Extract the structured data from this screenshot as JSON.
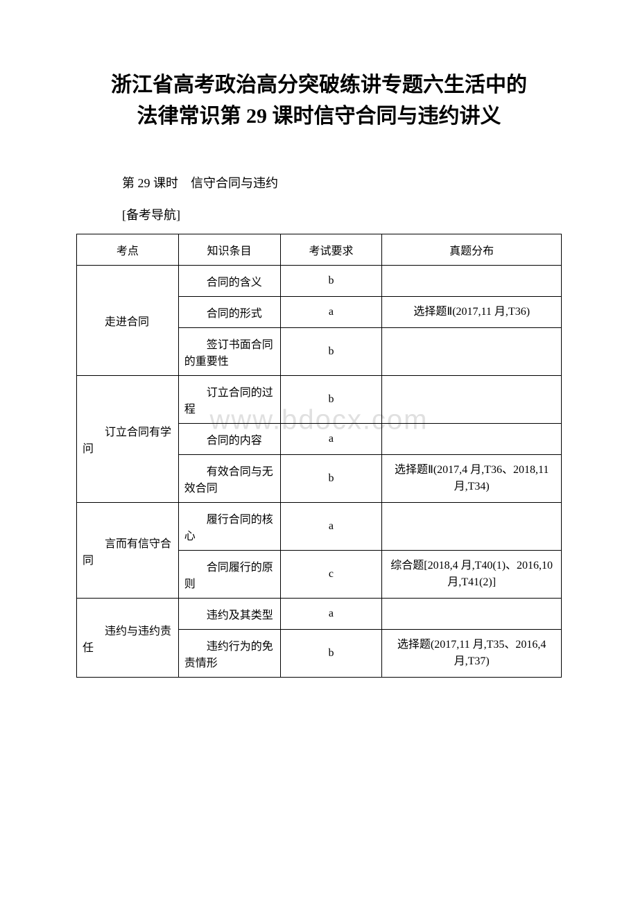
{
  "title_line1": "浙江省高考政治高分突破练讲专题六生活中的",
  "title_line2": "法律常识第 29 课时信守合同与违约讲义",
  "subtitle": "第 29 课时　信守合同与违约",
  "section_label": "[备考导航]",
  "watermark": "www.bdocx.com",
  "headers": {
    "col1": "考点",
    "col2": "知识条目",
    "col3": "考试要求",
    "col4": "真题分布"
  },
  "groups": [
    {
      "topic": "走进合同",
      "rows": [
        {
          "item": "合同的含义",
          "req": "b",
          "dist": ""
        },
        {
          "item": "合同的形式",
          "req": "a",
          "dist": "选择题Ⅱ(2017,11 月,T36)"
        },
        {
          "item": "签订书面合同的重要性",
          "req": "b",
          "dist": ""
        }
      ]
    },
    {
      "topic": "订立合同有学问",
      "rows": [
        {
          "item": "订立合同的过程",
          "req": "b",
          "dist": ""
        },
        {
          "item": "合同的内容",
          "req": "a",
          "dist": ""
        },
        {
          "item": "有效合同与无效合同",
          "req": "b",
          "dist": "选择题Ⅱ(2017,4 月,T36、2018,11 月,T34)"
        }
      ]
    },
    {
      "topic": "言而有信守合同",
      "rows": [
        {
          "item": "履行合同的核心",
          "req": "a",
          "dist": ""
        },
        {
          "item": "合同履行的原则",
          "req": "c",
          "dist": "综合题[2018,4 月,T40(1)、2016,10 月,T41(2)]"
        }
      ]
    },
    {
      "topic": "违约与违约责任",
      "rows": [
        {
          "item": "违约及其类型",
          "req": "a",
          "dist": ""
        },
        {
          "item": "违约行为的免责情形",
          "req": "b",
          "dist": "选择题(2017,11 月,T35、2016,4 月,T37)"
        }
      ]
    }
  ]
}
